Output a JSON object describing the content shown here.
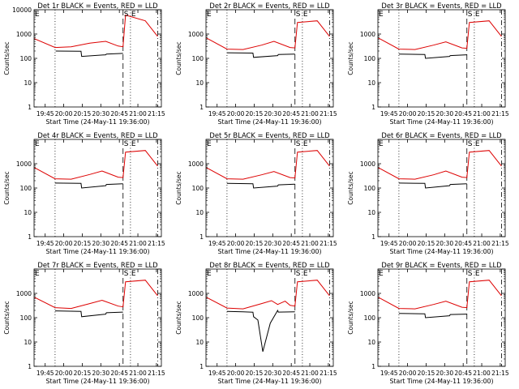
{
  "colors": {
    "events": "#000000",
    "lld": "#dd0000",
    "axes": "#000000",
    "background": "#ffffff"
  },
  "shared": {
    "ylabel": "Counts/sec",
    "xlabel": "Start Time (24-May-11 19:36:00)",
    "x_tick_labels": [
      "19:45",
      "20:00",
      "20:15",
      "20:30",
      "20:45",
      "21:00",
      "21:15"
    ],
    "x_tick_minutes": [
      9,
      24,
      39,
      54,
      69,
      84,
      99
    ],
    "x_range_minutes": [
      0,
      103
    ],
    "yscale": "log",
    "ylim": [
      1,
      10000
    ],
    "y_ticks": [
      {
        "value": 1,
        "label": "1"
      },
      {
        "value": 10,
        "label": "10"
      },
      {
        "value": 100,
        "label": "100"
      },
      {
        "value": 1000,
        "label": "1000"
      },
      {
        "value": 10000,
        "label": "10000"
      }
    ],
    "markers": [
      {
        "label": "E",
        "minute": 0
      },
      {
        "label": "S",
        "minute": 72
      },
      {
        "label": "E",
        "minute": 78
      }
    ],
    "vlines": [
      {
        "minute": 17,
        "style": "dotted"
      },
      {
        "minute": 72,
        "style": "dashed"
      },
      {
        "minute": 78,
        "style": "dotted"
      },
      {
        "minute": 100,
        "style": "dashdot"
      }
    ]
  },
  "chart_data": [
    {
      "type": "line",
      "title": "Det 1r BLACK = Events, RED = LLD",
      "y_tick_labels_shown": [
        "1",
        "10",
        "100",
        "1000",
        "10000"
      ],
      "series": [
        {
          "name": "Events",
          "color": "#000000",
          "x": [
            0,
            17,
            17.5,
            38,
            38.5,
            58,
            58.5,
            72
          ],
          "y": [
            null,
            null,
            200,
            195,
            120,
            140,
            150,
            160
          ]
        },
        {
          "name": "LLD",
          "color": "#dd0000",
          "x": [
            0,
            17,
            30,
            45,
            58,
            68,
            72,
            74,
            90,
            100
          ],
          "y": [
            650,
            280,
            300,
            420,
            500,
            320,
            300,
            6000,
            3500,
            800
          ]
        }
      ]
    },
    {
      "type": "line",
      "title": "Det 2r BLACK = Events, RED = LLD",
      "y_tick_labels_shown": [
        "1",
        "10",
        "100",
        "1000"
      ],
      "series": [
        {
          "name": "Events",
          "color": "#000000",
          "x": [
            17,
            38,
            38.5,
            58,
            58.5,
            72
          ],
          "y": [
            170,
            165,
            110,
            130,
            145,
            150
          ]
        },
        {
          "name": "LLD",
          "color": "#dd0000",
          "x": [
            0,
            17,
            30,
            45,
            55,
            68,
            72,
            74,
            90,
            100
          ],
          "y": [
            700,
            240,
            230,
            350,
            500,
            280,
            270,
            3000,
            3500,
            800
          ]
        }
      ]
    },
    {
      "type": "line",
      "title": "Det 3r BLACK = Events, RED = LLD",
      "y_tick_labels_shown": [
        "1",
        "10",
        "100",
        "1000"
      ],
      "series": [
        {
          "name": "Events",
          "color": "#000000",
          "x": [
            17,
            38,
            38.5,
            58,
            58.5,
            72
          ],
          "y": [
            150,
            145,
            100,
            120,
            130,
            140
          ]
        },
        {
          "name": "LLD",
          "color": "#dd0000",
          "x": [
            0,
            17,
            30,
            45,
            55,
            68,
            72,
            74,
            90,
            100
          ],
          "y": [
            700,
            240,
            230,
            350,
            480,
            270,
            260,
            3000,
            3500,
            800
          ]
        }
      ]
    },
    {
      "type": "line",
      "title": "Det 4r BLACK = Events, RED = LLD",
      "y_tick_labels_shown": [
        "1",
        "10",
        "100",
        "1000"
      ],
      "series": [
        {
          "name": "Events",
          "color": "#000000",
          "x": [
            17,
            38,
            38.5,
            58,
            58.5,
            72
          ],
          "y": [
            160,
            155,
            100,
            125,
            140,
            150
          ]
        },
        {
          "name": "LLD",
          "color": "#dd0000",
          "x": [
            0,
            17,
            30,
            45,
            55,
            68,
            72,
            74,
            90,
            100
          ],
          "y": [
            700,
            240,
            230,
            360,
            500,
            280,
            270,
            3000,
            3500,
            800
          ]
        }
      ]
    },
    {
      "type": "line",
      "title": "Det 5r BLACK = Events, RED = LLD",
      "y_tick_labels_shown": [
        "1",
        "10",
        "100",
        "1000"
      ],
      "series": [
        {
          "name": "Events",
          "color": "#000000",
          "x": [
            17,
            38,
            38.5,
            58,
            58.5,
            72
          ],
          "y": [
            155,
            150,
            100,
            120,
            135,
            145
          ]
        },
        {
          "name": "LLD",
          "color": "#dd0000",
          "x": [
            0,
            17,
            30,
            45,
            55,
            68,
            72,
            74,
            90,
            100
          ],
          "y": [
            700,
            240,
            230,
            350,
            480,
            270,
            260,
            3000,
            3500,
            800
          ]
        }
      ]
    },
    {
      "type": "line",
      "title": "Det 6r BLACK = Events, RED = LLD",
      "y_tick_labels_shown": [
        "1",
        "10",
        "100",
        "1000"
      ],
      "series": [
        {
          "name": "Events",
          "color": "#000000",
          "x": [
            17,
            38,
            38.5,
            58,
            58.5,
            72
          ],
          "y": [
            160,
            155,
            100,
            125,
            140,
            150
          ]
        },
        {
          "name": "LLD",
          "color": "#dd0000",
          "x": [
            0,
            17,
            30,
            45,
            55,
            68,
            72,
            74,
            90,
            100
          ],
          "y": [
            700,
            240,
            230,
            350,
            500,
            280,
            270,
            3000,
            3500,
            800
          ]
        }
      ]
    },
    {
      "type": "line",
      "title": "Det 7r BLACK = Events, RED = LLD",
      "y_tick_labels_shown": [
        "1",
        "10",
        "100",
        "1000"
      ],
      "series": [
        {
          "name": "Events",
          "color": "#000000",
          "x": [
            17,
            38,
            38.5,
            58,
            58.5,
            72
          ],
          "y": [
            190,
            180,
            110,
            140,
            160,
            170
          ]
        },
        {
          "name": "LLD",
          "color": "#dd0000",
          "x": [
            0,
            17,
            30,
            45,
            55,
            68,
            72,
            74,
            90,
            100
          ],
          "y": [
            700,
            260,
            240,
            380,
            520,
            300,
            280,
            3000,
            3500,
            800
          ]
        }
      ]
    },
    {
      "type": "line",
      "title": "Det 8r BLACK = Events, RED = LLD",
      "y_tick_labels_shown": [
        "1",
        "10",
        "100",
        "1000"
      ],
      "series": [
        {
          "name": "Events",
          "color": "#000000",
          "x": [
            17,
            30,
            36,
            38,
            38.5,
            42,
            46,
            52,
            58,
            58.5,
            72
          ],
          "y": [
            180,
            175,
            170,
            168,
            110,
            80,
            4,
            60,
            200,
            170,
            175
          ]
        },
        {
          "name": "LLD",
          "color": "#dd0000",
          "x": [
            0,
            17,
            30,
            45,
            53,
            58,
            64,
            68,
            72,
            74,
            90,
            100
          ],
          "y": [
            700,
            250,
            230,
            380,
            500,
            350,
            480,
            320,
            300,
            3000,
            3500,
            800
          ]
        }
      ]
    },
    {
      "type": "line",
      "title": "Det 9r BLACK = Events, RED = LLD",
      "y_tick_labels_shown": [
        "1",
        "10",
        "100",
        "1000"
      ],
      "series": [
        {
          "name": "Events",
          "color": "#000000",
          "x": [
            17,
            38,
            38.5,
            58,
            58.5,
            72
          ],
          "y": [
            150,
            145,
            100,
            120,
            135,
            140
          ]
        },
        {
          "name": "LLD",
          "color": "#dd0000",
          "x": [
            0,
            17,
            30,
            45,
            55,
            68,
            72,
            74,
            90,
            100
          ],
          "y": [
            700,
            240,
            230,
            350,
            480,
            270,
            260,
            3000,
            3500,
            800
          ]
        }
      ]
    }
  ]
}
